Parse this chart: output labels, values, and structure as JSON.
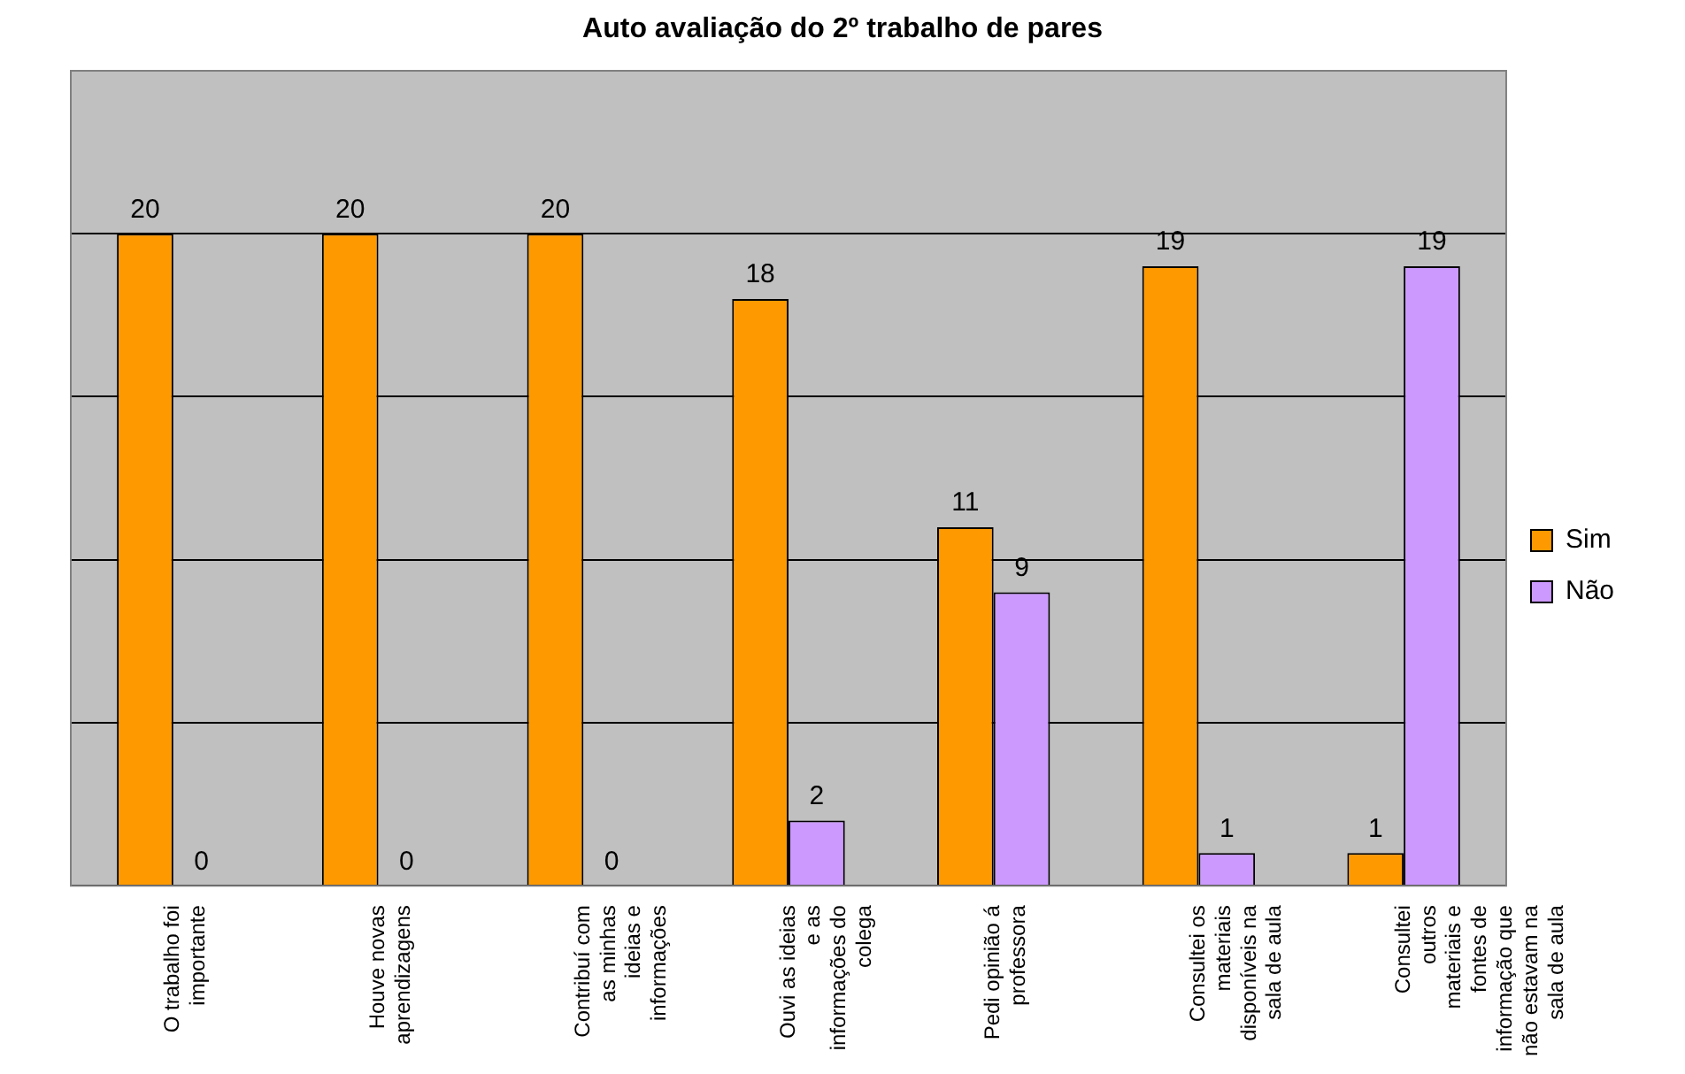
{
  "chart_data": {
    "type": "bar",
    "title": "Auto avaliação do 2º trabalho de pares",
    "categories": [
      "O trabalho foi importante",
      "Houve novas aprendizagens",
      "Contribuí com as minhas ideias e informações",
      "Ouvi as ideias e as informações do colega",
      "Pedi opinião á professora",
      "Consultei os materiais disponíveis na sala de aula",
      "Consultei outros materiais e fontes de informação que não estavam na sala de aula"
    ],
    "series": [
      {
        "name": "Sim",
        "color": "#ff9900",
        "values": [
          20,
          20,
          20,
          18,
          11,
          19,
          1
        ]
      },
      {
        "name": "Não",
        "color": "#cc99ff",
        "values": [
          0,
          0,
          0,
          2,
          9,
          1,
          19
        ]
      }
    ],
    "ylim": [
      0,
      25
    ],
    "yticks": [
      {
        "value": 0,
        "label": null
      },
      {
        "value": 5,
        "label": null
      },
      {
        "value": 10,
        "label": null
      },
      {
        "value": 15,
        "label": null
      },
      {
        "value": 20,
        "label": null
      },
      {
        "value": 25,
        "label": null
      }
    ],
    "grid": "y",
    "legend": "right",
    "data_labels": true
  }
}
